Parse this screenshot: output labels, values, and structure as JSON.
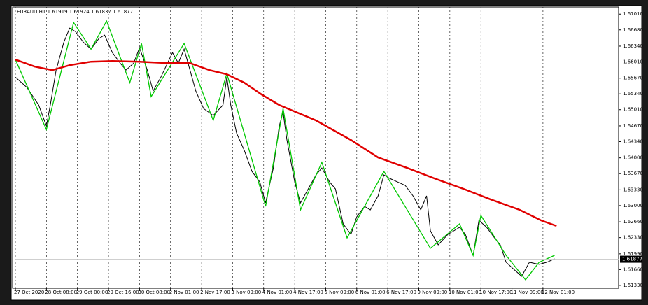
{
  "chart_data": {
    "type": "line",
    "title": "EURAUD,H1  1.61919 1.61924 1.61837 1.61877",
    "xlim": [
      0,
      311
    ],
    "xticks": [
      {
        "value": 0,
        "label": "27 Oct 2020"
      },
      {
        "value": 16,
        "label": "28 Oct 08:00"
      },
      {
        "value": 32,
        "label": "29 Oct 00:00"
      },
      {
        "value": 48,
        "label": "29 Oct 16:00"
      },
      {
        "value": 64,
        "label": "30 Oct 08:00"
      },
      {
        "value": 80,
        "label": "2 Nov 01:00"
      },
      {
        "value": 96,
        "label": "2 Nov 17:00"
      },
      {
        "value": 112,
        "label": "3 Nov 09:00"
      },
      {
        "value": 128,
        "label": "4 Nov 01:00"
      },
      {
        "value": 144,
        "label": "4 Nov 17:00"
      },
      {
        "value": 160,
        "label": "5 Nov 09:00"
      },
      {
        "value": 176,
        "label": "6 Nov 01:00"
      },
      {
        "value": 192,
        "label": "6 Nov 17:00"
      },
      {
        "value": 208,
        "label": "9 Nov 09:00"
      },
      {
        "value": 224,
        "label": "10 Nov 01:00"
      },
      {
        "value": 240,
        "label": "10 Nov 17:00"
      },
      {
        "value": 256,
        "label": "11 Nov 09:00"
      },
      {
        "value": 272,
        "label": "12 Nov 01:00"
      }
    ],
    "ylim": [
      1.6127,
      1.6716
    ],
    "yticks": [
      {
        "value": 1.6701,
        "label": "1.67010"
      },
      {
        "value": 1.6668,
        "label": "1.66680"
      },
      {
        "value": 1.6634,
        "label": "1.66340"
      },
      {
        "value": 1.6601,
        "label": "1.66010"
      },
      {
        "value": 1.6567,
        "label": "1.65670"
      },
      {
        "value": 1.6534,
        "label": "1.65340"
      },
      {
        "value": 1.6501,
        "label": "1.65010"
      },
      {
        "value": 1.6467,
        "label": "1.64670"
      },
      {
        "value": 1.6434,
        "label": "1.64340"
      },
      {
        "value": 1.64,
        "label": "1.64000"
      },
      {
        "value": 1.6367,
        "label": "1.63670"
      },
      {
        "value": 1.6333,
        "label": "1.63330"
      },
      {
        "value": 1.63,
        "label": "1.63000"
      },
      {
        "value": 1.6266,
        "label": "1.62660"
      },
      {
        "value": 1.6233,
        "label": "1.62330"
      },
      {
        "value": 1.6199,
        "label": "1.61990"
      },
      {
        "value": 1.6166,
        "label": "1.61660"
      },
      {
        "value": 1.6133,
        "label": "1.61330"
      }
    ],
    "grid": true,
    "current_price": 1.61877,
    "current_price_color": "#c8c8c8",
    "series": [
      {
        "color": "#000000",
        "width": 1,
        "x": [
          0,
          6,
          12,
          16,
          18,
          21,
          25,
          28,
          31,
          35,
          39,
          43,
          46,
          50,
          54,
          57,
          61,
          64,
          68,
          71,
          75,
          81,
          84,
          87,
          90,
          93,
          97,
          102,
          107,
          109,
          111,
          114,
          118,
          122,
          126,
          129,
          133,
          136,
          138,
          140,
          144,
          147,
          151,
          155,
          158,
          162,
          165,
          169,
          173,
          176,
          180,
          183,
          187,
          190,
          193,
          197,
          201,
          205,
          209,
          212,
          214,
          218,
          223,
          229,
          232,
          236,
          239,
          243,
          247,
          250,
          253,
          257,
          261,
          265,
          270,
          274,
          278
        ],
        "values": [
          1.65692,
          1.65473,
          1.65107,
          1.64668,
          1.65107,
          1.65839,
          1.66424,
          1.66717,
          1.66644,
          1.66424,
          1.66278,
          1.66498,
          1.66571,
          1.66205,
          1.65985,
          1.65839,
          1.65985,
          1.66307,
          1.65839,
          1.654,
          1.65692,
          1.66205,
          1.65985,
          1.66278,
          1.65839,
          1.654,
          1.65034,
          1.64887,
          1.65107,
          1.65692,
          1.65107,
          1.64521,
          1.64155,
          1.63716,
          1.63496,
          1.63057,
          1.63789,
          1.64668,
          1.6496,
          1.64375,
          1.63496,
          1.63057,
          1.6335,
          1.63643,
          1.63789,
          1.63496,
          1.6335,
          1.62618,
          1.62398,
          1.62764,
          1.62984,
          1.62911,
          1.63204,
          1.63643,
          1.6357,
          1.63496,
          1.63423,
          1.63204,
          1.62911,
          1.63204,
          1.62472,
          1.62179,
          1.62398,
          1.62545,
          1.62398,
          1.61959,
          1.62691,
          1.62545,
          1.62325,
          1.62179,
          1.61813,
          1.61666,
          1.6152,
          1.61813,
          1.61769,
          1.61813,
          1.61886
        ]
      },
      {
        "color": "#00c800",
        "width": 1.3,
        "x": [
          0,
          16,
          30,
          39,
          47,
          59,
          65,
          70,
          87,
          102,
          109,
          129,
          138,
          147,
          158,
          171,
          190,
          214,
          229,
          236,
          240,
          253,
          263,
          270,
          278
        ],
        "values": [
          1.66058,
          1.64594,
          1.66834,
          1.66278,
          1.66864,
          1.65575,
          1.66395,
          1.65283,
          1.66395,
          1.64785,
          1.65766,
          1.62984,
          1.65034,
          1.62911,
          1.63906,
          1.62325,
          1.63716,
          1.62106,
          1.62618,
          1.61959,
          1.62794,
          1.61959,
          1.61447,
          1.61813,
          1.61959
        ]
      },
      {
        "color": "#e00000",
        "width": 2.5,
        "x": [
          0,
          10,
          19,
          28,
          39,
          50,
          64,
          79,
          90,
          100,
          109,
          118,
          127,
          136,
          155,
          173,
          187,
          202,
          216,
          231,
          245,
          260,
          271,
          279
        ],
        "values": [
          1.66058,
          1.65912,
          1.65839,
          1.65941,
          1.66014,
          1.66029,
          1.66014,
          1.65985,
          1.65985,
          1.65839,
          1.65751,
          1.65575,
          1.65326,
          1.65107,
          1.64785,
          1.64375,
          1.64009,
          1.63789,
          1.6357,
          1.6335,
          1.6313,
          1.62911,
          1.62691,
          1.62574
        ]
      }
    ]
  }
}
